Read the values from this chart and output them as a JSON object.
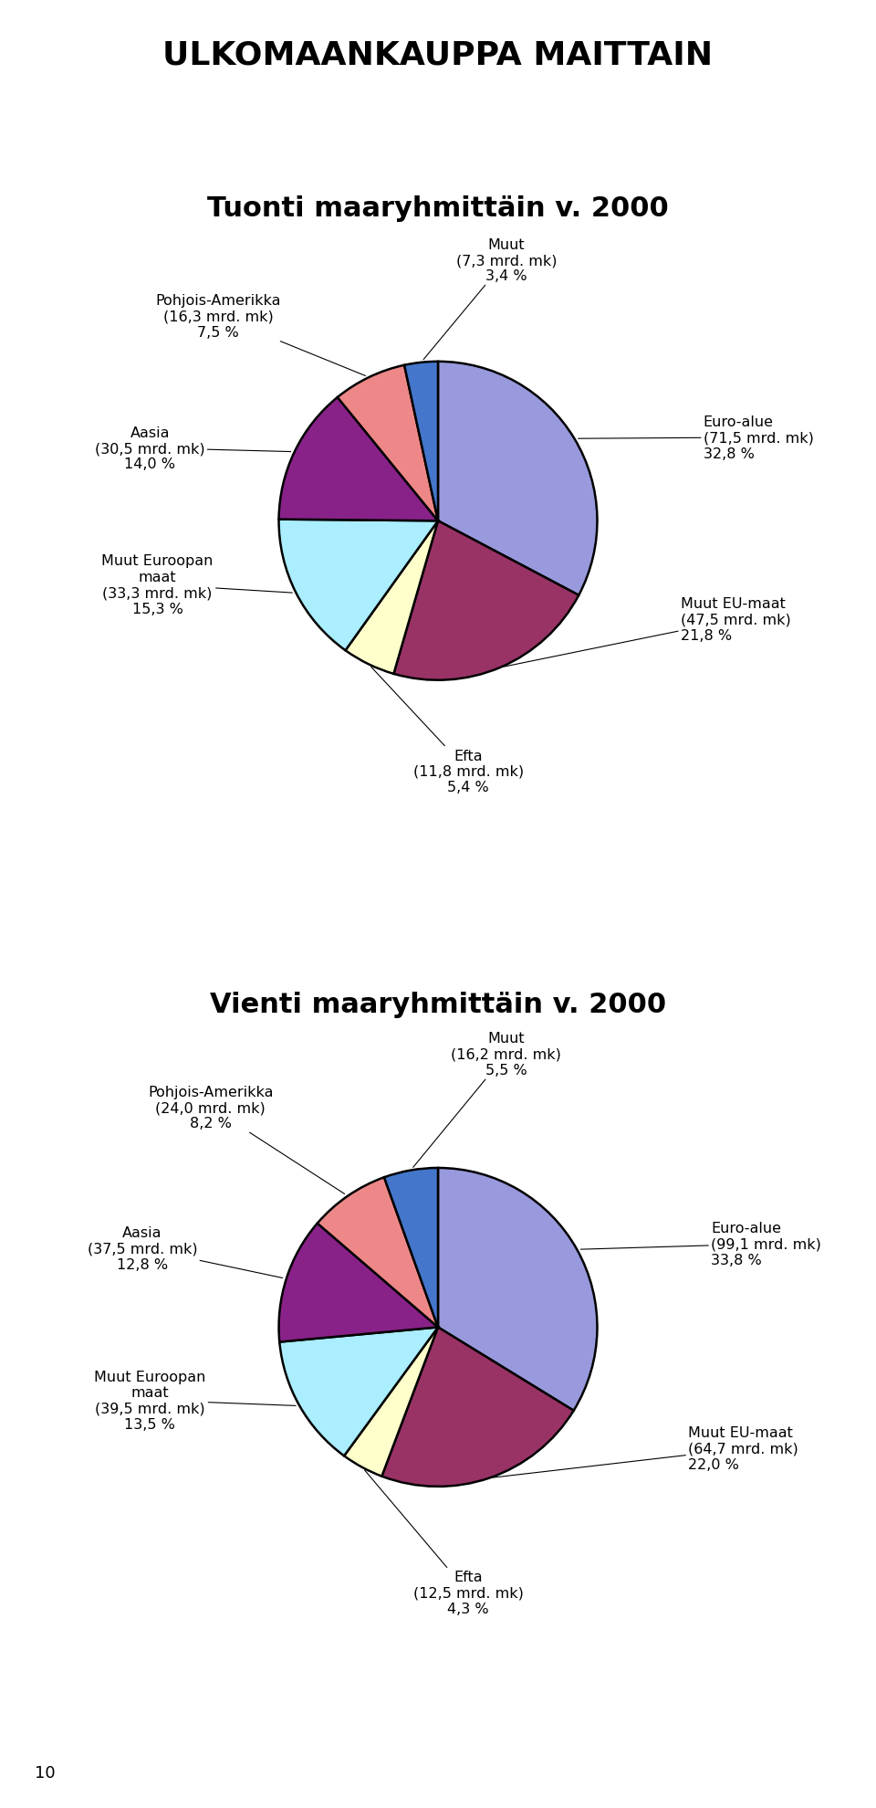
{
  "title_main": "ULKOMAANKAUPPA MAITTAIN",
  "title1": "Tuonti maaryhmittäin v. 2000",
  "title2": "Vienti maaryhmittäin v. 2000",
  "pie1_labels": [
    "Euro-alue",
    "Muut EU-maat",
    "Efta",
    "Muut Euroopan maat",
    "Aasia",
    "Pohjois-Amerikka",
    "Muut"
  ],
  "pie1_values": [
    32.8,
    21.8,
    5.4,
    15.3,
    14.0,
    7.5,
    3.4
  ],
  "pie1_amounts": [
    "(71,5 mrd. mk)",
    "(47,5 mrd. mk)",
    "(11,8 mrd. mk)",
    "(33,3 mrd. mk)",
    "(30,5 mrd. mk)",
    "(16,3 mrd. mk)",
    "(7,3 mrd. mk)"
  ],
  "pie1_pcts": [
    "32,8 %",
    "21,8 %",
    "5,4 %",
    "15,3 %",
    "14,0 %",
    "7,5 %",
    "3,4 %"
  ],
  "pie1_colors": [
    "#9999dd",
    "#993366",
    "#ffffcc",
    "#aaeeff",
    "#882288",
    "#ee8888",
    "#4477cc"
  ],
  "pie2_labels": [
    "Euro-alue",
    "Muut EU-maat",
    "Efta",
    "Muut Euroopan maat",
    "Aasia",
    "Pohjois-Amerikka",
    "Muut"
  ],
  "pie2_values": [
    33.8,
    22.0,
    4.3,
    13.5,
    12.8,
    8.2,
    5.5
  ],
  "pie2_amounts": [
    "(99,1 mrd. mk)",
    "(64,7 mrd. mk)",
    "(12,5 mrd. mk)",
    "(39,5 mrd. mk)",
    "(37,5 mrd. mk)",
    "(24,0 mrd. mk)",
    "(16,2 mrd. mk)"
  ],
  "pie2_pcts": [
    "33,8 %",
    "22,0 %",
    "4,3 %",
    "13,5 %",
    "12,8 %",
    "8,2 %",
    "5,5 %"
  ],
  "pie2_colors": [
    "#9999dd",
    "#993366",
    "#ffffcc",
    "#aaeeff",
    "#882288",
    "#ee8888",
    "#4477cc"
  ],
  "footnote": "10",
  "bg_color": "#ffffff",
  "text_color": "#000000",
  "label_fontsize": 11.5,
  "title_main_fontsize": 26,
  "subtitle_fontsize": 22
}
